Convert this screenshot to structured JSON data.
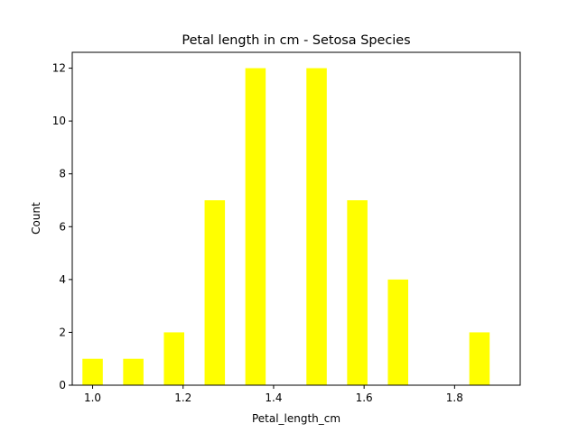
{
  "chart_data": {
    "type": "bar",
    "title": "Petal length in cm - Setosa Species",
    "xlabel": "Petal_length_cm",
    "ylabel": "Count",
    "xlim": [
      0.955,
      1.945
    ],
    "ylim": [
      0,
      12.6
    ],
    "xticks": [
      1.0,
      1.2,
      1.4,
      1.6,
      1.8
    ],
    "xtick_labels": [
      "1.0",
      "1.2",
      "1.4",
      "1.6",
      "1.8"
    ],
    "yticks": [
      0,
      2,
      4,
      6,
      8,
      10,
      12
    ],
    "ytick_labels": [
      "0",
      "2",
      "4",
      "6",
      "8",
      "10",
      "12"
    ],
    "bin_width": 0.045,
    "x": [
      1.0,
      1.09,
      1.18,
      1.27,
      1.36,
      1.495,
      1.585,
      1.675,
      1.855
    ],
    "values": [
      1,
      1,
      2,
      7,
      12,
      12,
      7,
      4,
      2
    ],
    "bar_color": "#ffff00",
    "grid": false,
    "legend": false
  }
}
